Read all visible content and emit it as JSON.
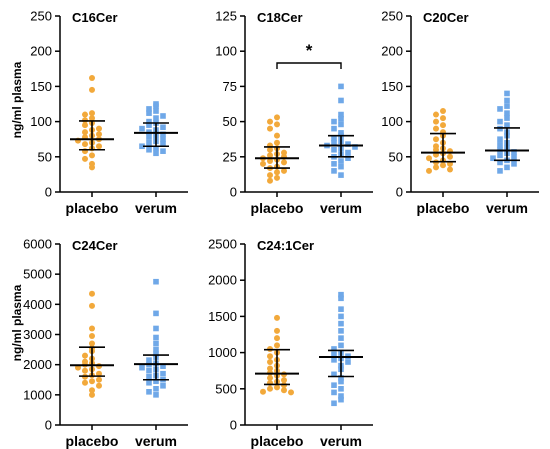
{
  "y_axis_label": "ng/ml plasma",
  "colors": {
    "placebo": "#F2A93B",
    "verum": "#6FA8E8",
    "axis": "#000000"
  },
  "chart_data": [
    {
      "type": "scatter",
      "title": "C16Cer",
      "categories": [
        "placebo",
        "verum"
      ],
      "ylabel": "ng/ml plasma",
      "ylim": [
        0,
        250
      ],
      "yticks": [
        0,
        50,
        100,
        150,
        200,
        250
      ],
      "series": [
        {
          "name": "placebo",
          "marker": "circle",
          "values": [
            162,
            145,
            112,
            110,
            105,
            102,
            98,
            95,
            90,
            88,
            85,
            82,
            80,
            78,
            75,
            73,
            70,
            68,
            65,
            62,
            58,
            52,
            47,
            40,
            35
          ],
          "median": 75,
          "iqr": [
            60,
            101
          ]
        },
        {
          "name": "verum",
          "marker": "square",
          "values": [
            125,
            122,
            118,
            115,
            112,
            108,
            105,
            100,
            98,
            95,
            92,
            90,
            88,
            85,
            82,
            80,
            78,
            75,
            72,
            70,
            68,
            65,
            62,
            60,
            58,
            55
          ],
          "median": 84,
          "iqr": [
            65,
            98
          ]
        }
      ]
    },
    {
      "type": "scatter",
      "title": "C18Cer",
      "categories": [
        "placebo",
        "verum"
      ],
      "ylabel": "",
      "ylim": [
        0,
        125
      ],
      "yticks": [
        0,
        25,
        50,
        75,
        100,
        125
      ],
      "significance": {
        "between": [
          "placebo",
          "verum"
        ],
        "label": "*"
      },
      "series": [
        {
          "name": "placebo",
          "marker": "circle",
          "values": [
            53,
            50,
            48,
            45,
            40,
            35,
            33,
            31,
            30,
            28,
            27,
            26,
            25,
            24,
            23,
            22,
            21,
            20,
            18,
            17,
            15,
            14,
            12,
            10,
            8
          ],
          "median": 24,
          "iqr": [
            17,
            32
          ]
        },
        {
          "name": "verum",
          "marker": "square",
          "values": [
            75,
            65,
            55,
            52,
            50,
            48,
            45,
            42,
            40,
            38,
            36,
            35,
            34,
            33,
            32,
            31,
            30,
            28,
            27,
            25,
            24,
            22,
            20,
            18,
            15,
            12
          ],
          "median": 33,
          "iqr": [
            25,
            40
          ]
        }
      ]
    },
    {
      "type": "scatter",
      "title": "C20Cer",
      "categories": [
        "placebo",
        "verum"
      ],
      "ylabel": "",
      "ylim": [
        0,
        250
      ],
      "yticks": [
        0,
        50,
        100,
        150,
        200,
        250
      ],
      "series": [
        {
          "name": "placebo",
          "marker": "circle",
          "values": [
            115,
            110,
            105,
            100,
            95,
            90,
            85,
            80,
            75,
            70,
            65,
            62,
            60,
            58,
            55,
            53,
            50,
            48,
            45,
            42,
            40,
            38,
            35,
            32,
            30
          ],
          "median": 56,
          "iqr": [
            43,
            83
          ]
        },
        {
          "name": "verum",
          "marker": "square",
          "values": [
            140,
            130,
            122,
            118,
            112,
            105,
            100,
            95,
            90,
            85,
            80,
            75,
            70,
            67,
            63,
            60,
            57,
            55,
            52,
            50,
            48,
            45,
            42,
            40,
            35,
            30
          ],
          "median": 59,
          "iqr": [
            45,
            91
          ]
        }
      ]
    },
    {
      "type": "scatter",
      "title": "C24Cer",
      "categories": [
        "placebo",
        "verum"
      ],
      "ylabel": "ng/ml plasma",
      "ylim": [
        0,
        6000
      ],
      "yticks": [
        0,
        1000,
        2000,
        3000,
        4000,
        5000,
        6000
      ],
      "series": [
        {
          "name": "placebo",
          "marker": "circle",
          "values": [
            4350,
            3950,
            3200,
            2950,
            2700,
            2550,
            2450,
            2300,
            2200,
            2100,
            2050,
            2000,
            1950,
            1900,
            1850,
            1800,
            1700,
            1650,
            1600,
            1500,
            1450,
            1400,
            1300,
            1150,
            1000
          ],
          "median": 1980,
          "iqr": [
            1620,
            2580
          ]
        },
        {
          "name": "verum",
          "marker": "square",
          "values": [
            4750,
            3700,
            3200,
            2900,
            2700,
            2500,
            2350,
            2250,
            2150,
            2050,
            2000,
            1950,
            1900,
            1850,
            1800,
            1700,
            1650,
            1600,
            1500,
            1450,
            1400,
            1300,
            1200,
            1100,
            1000
          ],
          "median": 2020,
          "iqr": [
            1500,
            2320
          ]
        }
      ]
    },
    {
      "type": "scatter",
      "title": "C24:1Cer",
      "categories": [
        "placebo",
        "verum"
      ],
      "ylabel": "",
      "ylim": [
        0,
        2500
      ],
      "yticks": [
        0,
        500,
        1000,
        1500,
        2000,
        2500
      ],
      "series": [
        {
          "name": "placebo",
          "marker": "circle",
          "values": [
            1480,
            1300,
            1200,
            1100,
            1050,
            1000,
            950,
            900,
            870,
            820,
            780,
            750,
            720,
            700,
            680,
            650,
            620,
            600,
            580,
            550,
            520,
            500,
            480,
            460,
            450
          ],
          "median": 710,
          "iqr": [
            560,
            1040
          ]
        },
        {
          "name": "verum",
          "marker": "square",
          "values": [
            1800,
            1750,
            1600,
            1500,
            1400,
            1300,
            1200,
            1100,
            1050,
            1000,
            970,
            950,
            920,
            900,
            870,
            820,
            770,
            700,
            650,
            600,
            550,
            500,
            450,
            400,
            350,
            300
          ],
          "median": 940,
          "iqr": [
            670,
            1030
          ]
        }
      ]
    }
  ]
}
